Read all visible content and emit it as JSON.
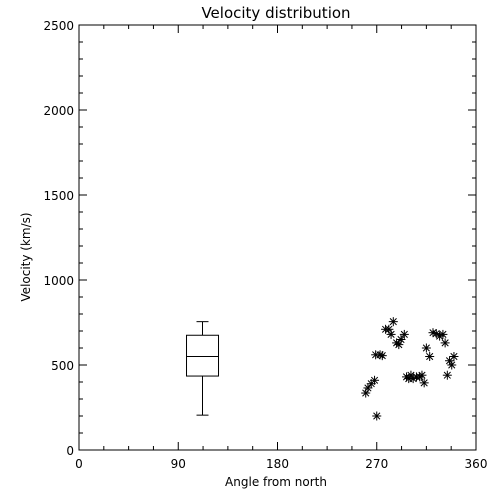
{
  "chart_data": {
    "type": "scatter",
    "title": "Velocity distribution",
    "xlabel": "Angle from north",
    "ylabel": "Velocity (km/s)",
    "xlim": [
      0,
      360
    ],
    "ylim": [
      0,
      2500
    ],
    "x_ticks": [
      0,
      90,
      180,
      270,
      360
    ],
    "y_ticks": [
      0,
      500,
      1000,
      1500,
      2000,
      2500
    ],
    "grid": false,
    "marker": "asterisk",
    "boxplot": {
      "x": 112,
      "min": 205,
      "q1": 435,
      "median": 550,
      "q3": 675,
      "max": 755
    },
    "points": [
      {
        "x": 260,
        "y": 335
      },
      {
        "x": 262,
        "y": 365
      },
      {
        "x": 265,
        "y": 390
      },
      {
        "x": 268,
        "y": 410
      },
      {
        "x": 269,
        "y": 560
      },
      {
        "x": 273,
        "y": 560
      },
      {
        "x": 270,
        "y": 200
      },
      {
        "x": 275,
        "y": 555
      },
      {
        "x": 278,
        "y": 710
      },
      {
        "x": 281,
        "y": 710
      },
      {
        "x": 283,
        "y": 680
      },
      {
        "x": 285,
        "y": 755
      },
      {
        "x": 288,
        "y": 630
      },
      {
        "x": 290,
        "y": 620
      },
      {
        "x": 292,
        "y": 650
      },
      {
        "x": 295,
        "y": 680
      },
      {
        "x": 297,
        "y": 430
      },
      {
        "x": 299,
        "y": 420
      },
      {
        "x": 301,
        "y": 440
      },
      {
        "x": 303,
        "y": 420
      },
      {
        "x": 306,
        "y": 430
      },
      {
        "x": 309,
        "y": 430
      },
      {
        "x": 311,
        "y": 440
      },
      {
        "x": 313,
        "y": 395
      },
      {
        "x": 315,
        "y": 600
      },
      {
        "x": 318,
        "y": 550
      },
      {
        "x": 321,
        "y": 690
      },
      {
        "x": 324,
        "y": 685
      },
      {
        "x": 327,
        "y": 670
      },
      {
        "x": 330,
        "y": 680
      },
      {
        "x": 332,
        "y": 630
      },
      {
        "x": 334,
        "y": 440
      },
      {
        "x": 336,
        "y": 525
      },
      {
        "x": 338,
        "y": 500
      },
      {
        "x": 340,
        "y": 550
      }
    ]
  }
}
